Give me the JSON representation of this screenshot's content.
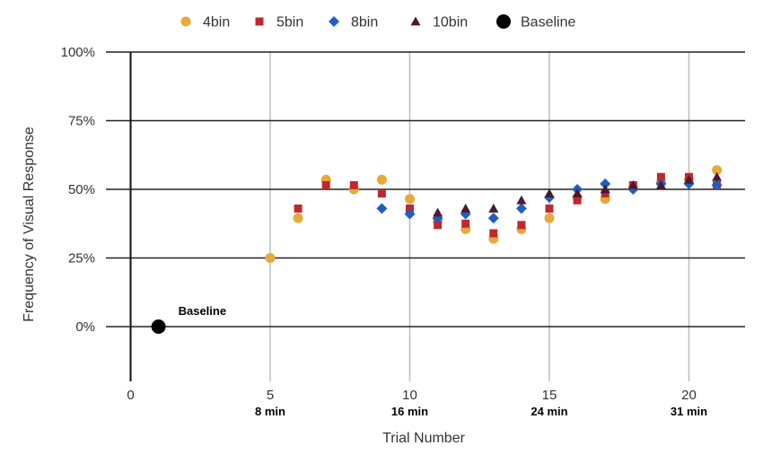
{
  "chart_data": {
    "type": "scatter",
    "title": "",
    "xlabel": "Trial  Number",
    "ylabel": "Frequency of Visual Response",
    "xlim": [
      -0.5,
      21.8
    ],
    "ylim": [
      -20,
      100
    ],
    "x_ticks": [
      {
        "value": 0,
        "label": "0",
        "sub": ""
      },
      {
        "value": 5,
        "label": "5",
        "sub": "8 min"
      },
      {
        "value": 10,
        "label": "10",
        "sub": "16 min"
      },
      {
        "value": 15,
        "label": "15",
        "sub": "24 min"
      },
      {
        "value": 20,
        "label": "20",
        "sub": "31 min"
      }
    ],
    "y_ticks": [
      {
        "value": 0,
        "label": "0%"
      },
      {
        "value": 25,
        "label": "25%"
      },
      {
        "value": 50,
        "label": "50%"
      },
      {
        "value": 75,
        "label": "75%"
      },
      {
        "value": 100,
        "label": "100%"
      }
    ],
    "grid": true,
    "legend_position": "top-center",
    "series": [
      {
        "name": "4bin",
        "color": "#E6A93A",
        "marker": "circle",
        "points": [
          [
            5,
            25
          ],
          [
            6,
            39.5
          ],
          [
            7,
            53.5
          ],
          [
            8,
            50
          ],
          [
            9,
            53.5
          ],
          [
            10,
            46.5
          ],
          [
            11,
            38.5
          ],
          [
            12,
            35.5
          ],
          [
            13,
            32
          ],
          [
            14,
            35.5
          ],
          [
            15,
            39.5
          ],
          [
            16,
            47
          ],
          [
            17,
            46.5
          ],
          [
            18,
            50.5
          ],
          [
            19,
            52.5
          ],
          [
            20,
            53.5
          ],
          [
            21,
            57
          ]
        ]
      },
      {
        "name": "5bin",
        "color": "#C0282D",
        "marker": "square",
        "points": [
          [
            6,
            43
          ],
          [
            7,
            51.5
          ],
          [
            8,
            51.5
          ],
          [
            9,
            48.5
          ],
          [
            10,
            43
          ],
          [
            11,
            37
          ],
          [
            12,
            37.5
          ],
          [
            13,
            34
          ],
          [
            14,
            37
          ],
          [
            15,
            43
          ],
          [
            16,
            46
          ],
          [
            17,
            48.5
          ],
          [
            18,
            51.5
          ],
          [
            19,
            54.5
          ],
          [
            20,
            54.5
          ],
          [
            21,
            51.5
          ]
        ]
      },
      {
        "name": "8bin",
        "color": "#1F5FBF",
        "marker": "diamond",
        "points": [
          [
            9,
            43
          ],
          [
            10,
            41
          ],
          [
            11,
            39.5
          ],
          [
            12,
            41
          ],
          [
            13,
            39.5
          ],
          [
            14,
            43
          ],
          [
            15,
            47
          ],
          [
            16,
            50
          ],
          [
            17,
            52
          ],
          [
            18,
            50
          ],
          [
            19,
            52
          ],
          [
            20,
            52
          ],
          [
            21,
            51.5
          ]
        ]
      },
      {
        "name": "10bin",
        "color": "#4A1A33",
        "marker": "triangle",
        "points": [
          [
            11,
            41.5
          ],
          [
            12,
            43
          ],
          [
            13,
            43
          ],
          [
            14,
            46
          ],
          [
            15,
            48.5
          ],
          [
            16,
            48.5
          ],
          [
            17,
            50
          ],
          [
            18,
            51.5
          ],
          [
            19,
            51.5
          ],
          [
            20,
            53.5
          ],
          [
            21,
            54.5
          ]
        ]
      },
      {
        "name": "Baseline",
        "color": "#000000",
        "marker": "big-circle",
        "points": [
          [
            1,
            0
          ]
        ]
      }
    ],
    "annotations": [
      {
        "text": "Baseline",
        "x": 1,
        "y": 0
      }
    ]
  }
}
